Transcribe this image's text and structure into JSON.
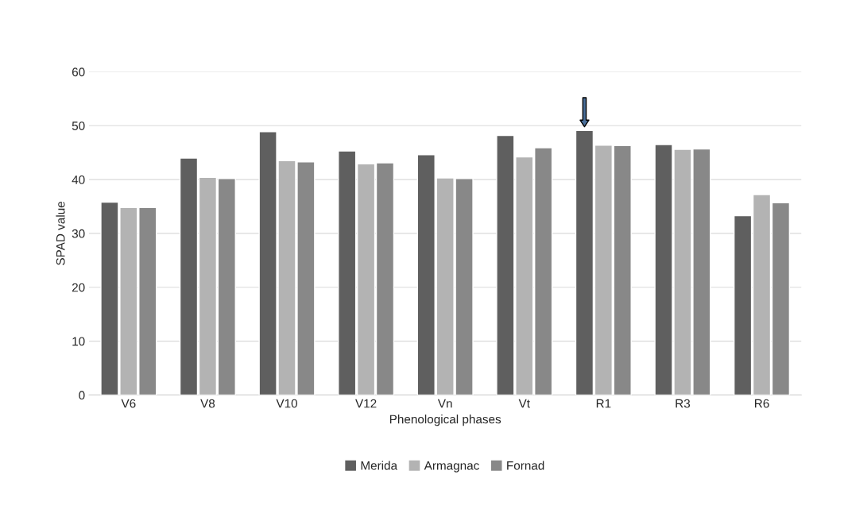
{
  "chart_data": {
    "type": "bar",
    "xlabel": "Phenological phases",
    "ylabel": "SPAD value",
    "categories": [
      "V6",
      "V8",
      "V10",
      "V12",
      "Vn",
      "Vt",
      "R1",
      "R3",
      "R6"
    ],
    "series": [
      {
        "name": "Merida",
        "color": "#5f5f5f",
        "values": [
          35.8,
          44.0,
          48.9,
          45.3,
          44.6,
          48.2,
          49.1,
          46.5,
          33.3
        ]
      },
      {
        "name": "Armagnac",
        "color": "#b3b3b3",
        "values": [
          34.8,
          40.4,
          43.5,
          42.9,
          40.3,
          44.2,
          46.4,
          45.6,
          37.2
        ]
      },
      {
        "name": "Fornad",
        "color": "#888888",
        "values": [
          34.8,
          40.2,
          43.3,
          43.1,
          40.2,
          45.9,
          46.3,
          45.7,
          35.7
        ]
      }
    ],
    "ylim": [
      0,
      60
    ],
    "yticks": [
      0,
      10,
      20,
      30,
      40,
      50,
      60
    ],
    "grid": "y",
    "legend": "bottom"
  }
}
